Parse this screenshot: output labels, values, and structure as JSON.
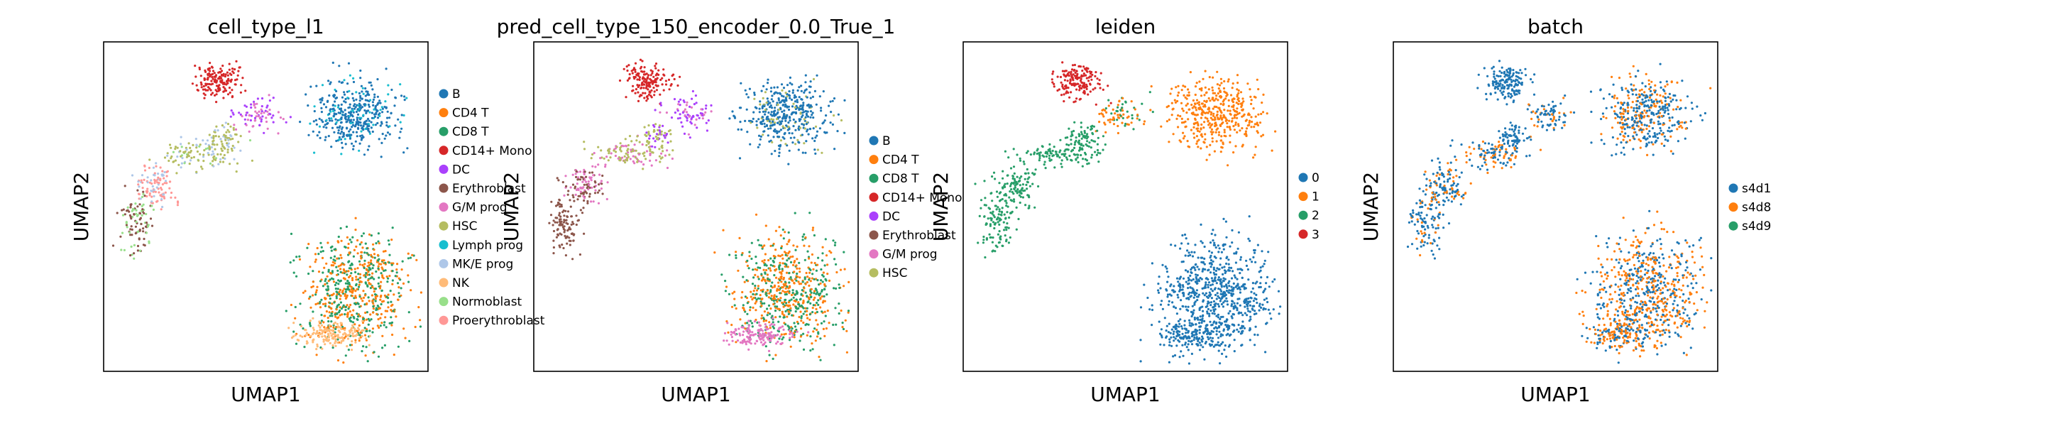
{
  "chart_data": [
    {
      "type": "scatter",
      "title": "cell_type_l1",
      "xlabel": "UMAP1",
      "ylabel": "UMAP2",
      "grid": false,
      "legend_placement": "right",
      "series": [
        {
          "name": "B",
          "color": "#1f77b4"
        },
        {
          "name": "CD4 T",
          "color": "#ff7f0e"
        },
        {
          "name": "CD8 T",
          "color": "#279e68"
        },
        {
          "name": "CD14+ Mono",
          "color": "#d62728"
        },
        {
          "name": "DC",
          "color": "#aa40fc"
        },
        {
          "name": "Erythroblast",
          "color": "#8c564b"
        },
        {
          "name": "G/M prog",
          "color": "#e377c2"
        },
        {
          "name": "HSC",
          "color": "#b5bd61"
        },
        {
          "name": "Lymph prog",
          "color": "#17becf"
        },
        {
          "name": "MK/E prog",
          "color": "#aec7e8"
        },
        {
          "name": "NK",
          "color": "#ffbb78"
        },
        {
          "name": "Normoblast",
          "color": "#98df8a"
        },
        {
          "name": "Proerythroblast",
          "color": "#ff9896"
        }
      ]
    },
    {
      "type": "scatter",
      "title": "pred_cell_type_150_encoder_0.0_True_1",
      "xlabel": "UMAP1",
      "ylabel": "UMAP2",
      "grid": false,
      "legend_placement": "right",
      "series": [
        {
          "name": "B",
          "color": "#1f77b4"
        },
        {
          "name": "CD4 T",
          "color": "#ff7f0e"
        },
        {
          "name": "CD8 T",
          "color": "#279e68"
        },
        {
          "name": "CD14+ Mono",
          "color": "#d62728"
        },
        {
          "name": "DC",
          "color": "#aa40fc"
        },
        {
          "name": "Erythroblast",
          "color": "#8c564b"
        },
        {
          "name": "G/M prog",
          "color": "#e377c2"
        },
        {
          "name": "HSC",
          "color": "#b5bd61"
        }
      ]
    },
    {
      "type": "scatter",
      "title": "leiden",
      "xlabel": "UMAP1",
      "ylabel": "UMAP2",
      "grid": false,
      "legend_placement": "right",
      "series": [
        {
          "name": "0",
          "color": "#1f77b4"
        },
        {
          "name": "1",
          "color": "#ff7f0e"
        },
        {
          "name": "2",
          "color": "#279e68"
        },
        {
          "name": "3",
          "color": "#d62728"
        }
      ]
    },
    {
      "type": "scatter",
      "title": "batch",
      "xlabel": "UMAP1",
      "ylabel": "UMAP2",
      "grid": false,
      "legend_placement": "right",
      "series": [
        {
          "name": "s4d1",
          "color": "#1f77b4"
        },
        {
          "name": "s4d8",
          "color": "#ff7f0e"
        },
        {
          "name": "s4d9",
          "color": "#279e68"
        }
      ]
    }
  ]
}
